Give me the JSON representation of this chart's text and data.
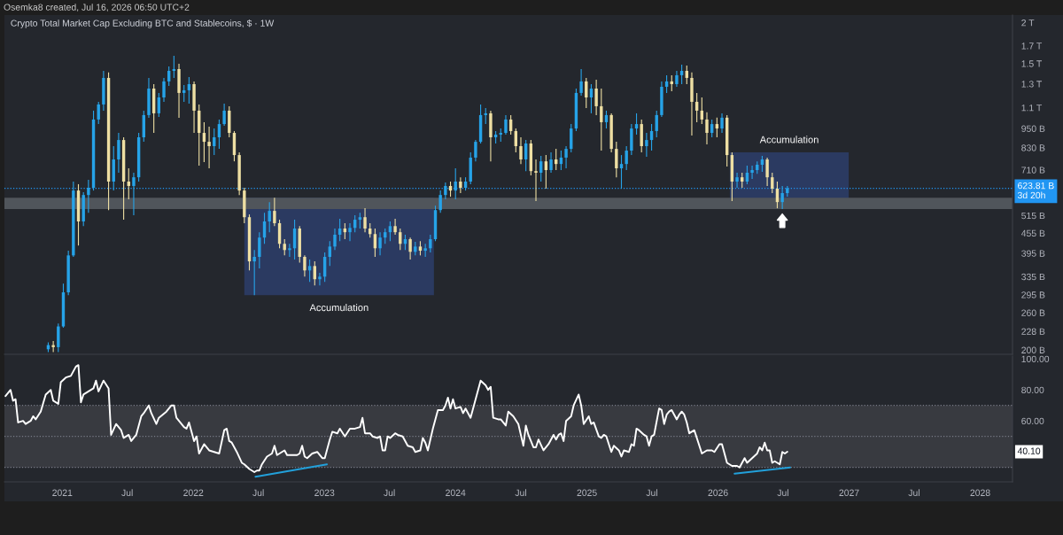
{
  "chart_data": [
    {
      "type": "candlestick",
      "title": "Crypto Total Market Cap Excluding BTC and Stablecoins, $ · 1W",
      "annotations": [
        "Osemka8 created, Jul 16, 2026 06:50 UTC+2"
      ],
      "x": [
        "2020-11-23",
        "2020-12-07",
        "2020-12-21",
        "2021-01-04",
        "2021-01-18",
        "2021-02-01",
        "2021-02-15",
        "2021-03-01",
        "2021-03-15",
        "2021-03-29",
        "2021-04-12",
        "2021-04-26",
        "2021-05-10",
        "2021-05-24",
        "2021-06-07",
        "2021-06-21",
        "2021-07-05",
        "2021-07-19",
        "2021-08-02",
        "2021-08-16",
        "2021-08-30",
        "2021-09-13",
        "2021-09-27",
        "2021-10-11",
        "2021-10-25",
        "2021-11-08",
        "2021-11-22",
        "2021-12-06",
        "2021-12-20",
        "2022-01-03",
        "2022-01-17",
        "2022-01-31",
        "2022-02-14",
        "2022-02-28",
        "2022-03-14",
        "2022-03-28",
        "2022-04-11",
        "2022-04-25",
        "2022-05-09",
        "2022-05-23",
        "2022-06-06",
        "2022-06-20",
        "2022-07-04",
        "2022-07-18",
        "2022-08-01",
        "2022-08-15",
        "2022-08-29",
        "2022-09-12",
        "2022-09-26",
        "2022-10-10",
        "2022-10-24",
        "2022-11-07",
        "2022-11-21",
        "2022-12-05",
        "2022-12-19",
        "2023-01-02",
        "2023-01-16",
        "2023-01-30",
        "2023-02-13",
        "2023-02-27",
        "2023-03-13",
        "2023-03-27",
        "2023-04-10",
        "2023-04-24",
        "2023-05-08",
        "2023-05-22",
        "2023-06-05",
        "2023-06-19",
        "2023-07-03",
        "2023-07-17",
        "2023-07-31",
        "2023-08-14",
        "2023-08-28",
        "2023-09-11",
        "2023-09-25",
        "2023-10-09",
        "2023-10-23",
        "2023-11-06",
        "2023-11-20",
        "2023-12-04",
        "2023-12-18",
        "2024-01-01",
        "2024-01-15",
        "2024-01-29",
        "2024-02-12",
        "2024-02-26",
        "2024-03-11",
        "2024-03-25",
        "2024-04-08",
        "2024-04-22",
        "2024-05-06",
        "2024-05-20",
        "2024-06-03",
        "2024-06-17",
        "2024-07-01",
        "2024-07-15",
        "2024-07-29",
        "2024-08-12",
        "2024-08-26",
        "2024-09-09",
        "2024-09-23",
        "2024-10-07",
        "2024-10-21",
        "2024-11-04",
        "2024-11-18",
        "2024-12-02",
        "2024-12-16",
        "2024-12-30",
        "2025-01-13",
        "2025-01-27",
        "2025-02-10",
        "2025-02-24",
        "2025-03-10",
        "2025-03-24",
        "2025-04-07",
        "2025-04-21",
        "2025-05-05",
        "2025-05-19",
        "2025-06-02",
        "2025-06-16",
        "2025-06-30",
        "2025-07-14",
        "2025-07-28",
        "2025-08-11",
        "2025-08-25",
        "2025-09-08",
        "2025-09-22",
        "2025-10-06",
        "2025-10-20",
        "2025-11-03",
        "2025-11-17",
        "2025-12-01",
        "2025-12-15",
        "2025-12-29",
        "2026-01-12",
        "2026-01-26",
        "2026-02-09",
        "2026-02-23",
        "2026-03-09",
        "2026-03-23",
        "2026-04-06",
        "2026-04-20",
        "2026-05-04",
        "2026-05-18",
        "2026-06-01",
        "2026-06-15",
        "2026-06-29",
        "2026-07-13"
      ],
      "ohlc": [
        [
          201000000000.0,
          211000000000.0,
          197000000000.0,
          207000000000.0
        ],
        [
          207000000000.0,
          213000000000.0,
          197000000000.0,
          204000000000.0
        ],
        [
          204000000000.0,
          241000000000.0,
          197000000000.0,
          236000000000.0
        ],
        [
          236000000000.0,
          319000000000.0,
          234000000000.0,
          300000000000.0
        ],
        [
          300000000000.0,
          402000000000.0,
          294000000000.0,
          389000000000.0
        ],
        [
          389000000000.0,
          654000000000.0,
          385000000000.0,
          614000000000.0
        ],
        [
          614000000000.0,
          642000000000.0,
          417000000000.0,
          494000000000.0
        ],
        [
          494000000000.0,
          607000000000.0,
          478000000000.0,
          595000000000.0
        ],
        [
          595000000000.0,
          662000000000.0,
          525000000000.0,
          626000000000.0
        ],
        [
          626000000000.0,
          1077000000000.0,
          614000000000.0,
          1012000000000.0
        ],
        [
          1012000000000.0,
          1146000000000.0,
          980000000000.0,
          1125000000000.0
        ],
        [
          1125000000000.0,
          1425000000000.0,
          1077000000000.0,
          1356000000000.0
        ],
        [
          1356000000000.0,
          1410000000000.0,
          535000000000.0,
          654000000000.0
        ],
        [
          654000000000.0,
          839000000000.0,
          614000000000.0,
          764000000000.0
        ],
        [
          764000000000.0,
          921000000000.0,
          696000000000.0,
          876000000000.0
        ],
        [
          876000000000.0,
          893000000000.0,
          500000000000.0,
          654000000000.0
        ],
        [
          654000000000.0,
          718000000000.0,
          577000000000.0,
          634000000000.0
        ],
        [
          634000000000.0,
          696000000000.0,
          516000000000.0,
          674000000000.0
        ],
        [
          674000000000.0,
          921000000000.0,
          654000000000.0,
          893000000000.0
        ],
        [
          893000000000.0,
          1077000000000.0,
          865000000000.0,
          1044000000000.0
        ],
        [
          1044000000000.0,
          1356000000000.0,
          1024000000000.0,
          1258000000000.0
        ],
        [
          1258000000000.0,
          1298000000000.0,
          921000000000.0,
          1057000000000.0
        ],
        [
          1057000000000.0,
          1220000000000.0,
          1031000000000.0,
          1182000000000.0
        ],
        [
          1182000000000.0,
          1356000000000.0,
          1146000000000.0,
          1323000000000.0
        ],
        [
          1323000000000.0,
          1471000000000.0,
          1282000000000.0,
          1425000000000.0
        ],
        [
          1425000000000.0,
          1585000000000.0,
          1356000000000.0,
          1443000000000.0
        ],
        [
          1443000000000.0,
          1498000000000.0,
          1024000000000.0,
          1220000000000.0
        ],
        [
          1220000000000.0,
          1290000000000.0,
          1146000000000.0,
          1243000000000.0
        ],
        [
          1243000000000.0,
          1365000000000.0,
          1132000000000.0,
          1298000000000.0
        ],
        [
          1298000000000.0,
          1323000000000.0,
          921000000000.0,
          1077000000000.0
        ],
        [
          1077000000000.0,
          1125000000000.0,
          731000000000.0,
          921000000000.0
        ],
        [
          921000000000.0,
          993000000000.0,
          750000000000.0,
          865000000000.0
        ],
        [
          865000000000.0,
          962000000000.0,
          718000000000.0,
          839000000000.0
        ],
        [
          839000000000.0,
          950000000000.0,
          788000000000.0,
          893000000000.0
        ],
        [
          893000000000.0,
          1012000000000.0,
          823000000000.0,
          980000000000.0
        ],
        [
          980000000000.0,
          1132000000000.0,
          968000000000.0,
          1077000000000.0
        ],
        [
          1077000000000.0,
          1111000000000.0,
          893000000000.0,
          921000000000.0
        ],
        [
          921000000000.0,
          933000000000.0,
          754000000000.0,
          788000000000.0
        ],
        [
          788000000000.0,
          803000000000.0,
          595000000000.0,
          614000000000.0
        ],
        [
          614000000000.0,
          626000000000.0,
          488000000000.0,
          509000000000.0
        ],
        [
          509000000000.0,
          519000000000.0,
          350000000000.0,
          373000000000.0
        ],
        [
          373000000000.0,
          404000000000.0,
          294000000000.0,
          385000000000.0
        ],
        [
          385000000000.0,
          458000000000.0,
          355000000000.0,
          441000000000.0
        ],
        [
          441000000000.0,
          525000000000.0,
          422000000000.0,
          494000000000.0
        ],
        [
          494000000000.0,
          566000000000.0,
          458000000000.0,
          532000000000.0
        ],
        [
          532000000000.0,
          584000000000.0,
          478000000000.0,
          488000000000.0
        ],
        [
          488000000000.0,
          500000000000.0,
          409000000000.0,
          422000000000.0
        ],
        [
          422000000000.0,
          436000000000.0,
          389000000000.0,
          404000000000.0
        ],
        [
          404000000000.0,
          422000000000.0,
          385000000000.0,
          409000000000.0
        ],
        [
          409000000000.0,
          500000000000.0,
          378000000000.0,
          470000000000.0
        ],
        [
          470000000000.0,
          478000000000.0,
          370000000000.0,
          385000000000.0
        ],
        [
          385000000000.0,
          389000000000.0,
          335000000000.0,
          350000000000.0
        ],
        [
          350000000000.0,
          378000000000.0,
          323000000000.0,
          361000000000.0
        ],
        [
          361000000000.0,
          373000000000.0,
          315000000000.0,
          329000000000.0
        ],
        [
          329000000000.0,
          344000000000.0,
          315000000000.0,
          335000000000.0
        ],
        [
          335000000000.0,
          397000000000.0,
          323000000000.0,
          385000000000.0
        ],
        [
          385000000000.0,
          430000000000.0,
          361000000000.0,
          414000000000.0
        ],
        [
          414000000000.0,
          470000000000.0,
          404000000000.0,
          450000000000.0
        ],
        [
          450000000000.0,
          503000000000.0,
          430000000000.0,
          470000000000.0
        ],
        [
          470000000000.0,
          488000000000.0,
          436000000000.0,
          458000000000.0
        ],
        [
          458000000000.0,
          488000000000.0,
          430000000000.0,
          472000000000.0
        ],
        [
          472000000000.0,
          516000000000.0,
          458000000000.0,
          500000000000.0
        ],
        [
          500000000000.0,
          525000000000.0,
          470000000000.0,
          509000000000.0
        ],
        [
          509000000000.0,
          542000000000.0,
          458000000000.0,
          470000000000.0
        ],
        [
          470000000000.0,
          488000000000.0,
          441000000000.0,
          452000000000.0
        ],
        [
          452000000000.0,
          470000000000.0,
          385000000000.0,
          409000000000.0
        ],
        [
          409000000000.0,
          458000000000.0,
          389000000000.0,
          441000000000.0
        ],
        [
          441000000000.0,
          470000000000.0,
          422000000000.0,
          458000000000.0
        ],
        [
          458000000000.0,
          494000000000.0,
          430000000000.0,
          478000000000.0
        ],
        [
          478000000000.0,
          503000000000.0,
          450000000000.0,
          458000000000.0
        ],
        [
          458000000000.0,
          470000000000.0,
          404000000000.0,
          422000000000.0
        ],
        [
          422000000000.0,
          450000000000.0,
          404000000000.0,
          436000000000.0
        ],
        [
          436000000000.0,
          441000000000.0,
          378000000000.0,
          399000000000.0
        ],
        [
          399000000000.0,
          428000000000.0,
          389000000000.0,
          414000000000.0
        ],
        [
          414000000000.0,
          430000000000.0,
          389000000000.0,
          402000000000.0
        ],
        [
          402000000000.0,
          422000000000.0,
          385000000000.0,
          409000000000.0
        ],
        [
          409000000000.0,
          450000000000.0,
          397000000000.0,
          436000000000.0
        ],
        [
          436000000000.0,
          552000000000.0,
          430000000000.0,
          535000000000.0
        ],
        [
          535000000000.0,
          614000000000.0,
          525000000000.0,
          595000000000.0
        ],
        [
          595000000000.0,
          650000000000.0,
          577000000000.0,
          634000000000.0
        ],
        [
          634000000000.0,
          654000000000.0,
          588000000000.0,
          614000000000.0
        ],
        [
          614000000000.0,
          718000000000.0,
          577000000000.0,
          654000000000.0
        ],
        [
          654000000000.0,
          674000000000.0,
          603000000000.0,
          626000000000.0
        ],
        [
          626000000000.0,
          674000000000.0,
          614000000000.0,
          654000000000.0
        ],
        [
          654000000000.0,
          803000000000.0,
          642000000000.0,
          774000000000.0
        ],
        [
          774000000000.0,
          876000000000.0,
          754000000000.0,
          865000000000.0
        ],
        [
          865000000000.0,
          1125000000000.0,
          855000000000.0,
          1044000000000.0
        ],
        [
          1044000000000.0,
          1097000000000.0,
          980000000000.0,
          1057000000000.0
        ],
        [
          1057000000000.0,
          1077000000000.0,
          754000000000.0,
          893000000000.0
        ],
        [
          893000000000.0,
          933000000000.0,
          855000000000.0,
          910000000000.0
        ],
        [
          910000000000.0,
          950000000000.0,
          865000000000.0,
          921000000000.0
        ],
        [
          921000000000.0,
          1044000000000.0,
          910000000000.0,
          1012000000000.0
        ],
        [
          1012000000000.0,
          1044000000000.0,
          910000000000.0,
          933000000000.0
        ],
        [
          933000000000.0,
          950000000000.0,
          803000000000.0,
          839000000000.0
        ],
        [
          839000000000.0,
          893000000000.0,
          740000000000.0,
          764000000000.0
        ],
        [
          764000000000.0,
          876000000000.0,
          704000000000.0,
          855000000000.0
        ],
        [
          855000000000.0,
          876000000000.0,
          683000000000.0,
          704000000000.0
        ],
        [
          704000000000.0,
          764000000000.0,
          570000000000.0,
          696000000000.0
        ],
        [
          696000000000.0,
          783000000000.0,
          654000000000.0,
          754000000000.0
        ],
        [
          754000000000.0,
          788000000000.0,
          622000000000.0,
          709000000000.0
        ],
        [
          709000000000.0,
          803000000000.0,
          696000000000.0,
          764000000000.0
        ],
        [
          764000000000.0,
          823000000000.0,
          709000000000.0,
          740000000000.0
        ],
        [
          740000000000.0,
          813000000000.0,
          709000000000.0,
          774000000000.0
        ],
        [
          774000000000.0,
          839000000000.0,
          718000000000.0,
          823000000000.0
        ],
        [
          823000000000.0,
          980000000000.0,
          803000000000.0,
          950000000000.0
        ],
        [
          950000000000.0,
          1258000000000.0,
          933000000000.0,
          1220000000000.0
        ],
        [
          1220000000000.0,
          1443000000000.0,
          1197000000000.0,
          1323000000000.0
        ],
        [
          1323000000000.0,
          1356000000000.0,
          1097000000000.0,
          1182000000000.0
        ],
        [
          1182000000000.0,
          1298000000000.0,
          1057000000000.0,
          1258000000000.0
        ],
        [
          1258000000000.0,
          1339000000000.0,
          1044000000000.0,
          1111000000000.0
        ],
        [
          1111000000000.0,
          1258000000000.0,
          813000000000.0,
          993000000000.0
        ],
        [
          993000000000.0,
          1077000000000.0,
          950000000000.0,
          1044000000000.0
        ],
        [
          1044000000000.0,
          1057000000000.0,
          803000000000.0,
          823000000000.0
        ],
        [
          823000000000.0,
          865000000000.0,
          674000000000.0,
          718000000000.0
        ],
        [
          718000000000.0,
          788000000000.0,
          622000000000.0,
          740000000000.0
        ],
        [
          740000000000.0,
          839000000000.0,
          709000000000.0,
          813000000000.0
        ],
        [
          813000000000.0,
          980000000000.0,
          788000000000.0,
          950000000000.0
        ],
        [
          950000000000.0,
          1057000000000.0,
          910000000000.0,
          980000000000.0
        ],
        [
          980000000000.0,
          1012000000000.0,
          803000000000.0,
          839000000000.0
        ],
        [
          839000000000.0,
          921000000000.0,
          778000000000.0,
          876000000000.0
        ],
        [
          876000000000.0,
          980000000000.0,
          813000000000.0,
          933000000000.0
        ],
        [
          933000000000.0,
          1077000000000.0,
          893000000000.0,
          1044000000000.0
        ],
        [
          1044000000000.0,
          1323000000000.0,
          1031000000000.0,
          1274000000000.0
        ],
        [
          1274000000000.0,
          1382000000000.0,
          1220000000000.0,
          1323000000000.0
        ],
        [
          1323000000000.0,
          1382000000000.0,
          1235000000000.0,
          1298000000000.0
        ],
        [
          1298000000000.0,
          1425000000000.0,
          1274000000000.0,
          1382000000000.0
        ],
        [
          1382000000000.0,
          1489000000000.0,
          1298000000000.0,
          1425000000000.0
        ],
        [
          1425000000000.0,
          1480000000000.0,
          1298000000000.0,
          1356000000000.0
        ],
        [
          1356000000000.0,
          1410000000000.0,
          904000000000.0,
          1146000000000.0
        ],
        [
          1146000000000.0,
          1220000000000.0,
          993000000000.0,
          1077000000000.0
        ],
        [
          1077000000000.0,
          1182000000000.0,
          980000000000.0,
          1012000000000.0
        ],
        [
          1012000000000.0,
          1064000000000.0,
          849000000000.0,
          921000000000.0
        ],
        [
          921000000000.0,
          1012000000000.0,
          893000000000.0,
          980000000000.0
        ],
        [
          980000000000.0,
          1025000000000.0,
          893000000000.0,
          950000000000.0
        ],
        [
          950000000000.0,
          1057000000000.0,
          921000000000.0,
          1025000000000.0
        ],
        [
          1025000000000.0,
          1044000000000.0,
          727000000000.0,
          788000000000.0
        ],
        [
          788000000000.0,
          803000000000.0,
          570000000000.0,
          654000000000.0
        ],
        [
          654000000000.0,
          696000000000.0,
          626000000000.0,
          674000000000.0
        ],
        [
          674000000000.0,
          696000000000.0,
          626000000000.0,
          654000000000.0
        ],
        [
          654000000000.0,
          731000000000.0,
          642000000000.0,
          696000000000.0
        ],
        [
          696000000000.0,
          731000000000.0,
          666000000000.0,
          709000000000.0
        ],
        [
          709000000000.0,
          754000000000.0,
          691000000000.0,
          736000000000.0
        ],
        [
          736000000000.0,
          783000000000.0,
          700000000000.0,
          764000000000.0
        ],
        [
          764000000000.0,
          774000000000.0,
          634000000000.0,
          674000000000.0
        ],
        [
          674000000000.0,
          696000000000.0,
          603000000000.0,
          622000000000.0
        ],
        [
          622000000000.0,
          654000000000.0,
          542000000000.0,
          566000000000.0
        ],
        [
          566000000000.0,
          634000000000.0,
          539000000000.0,
          603000000000.0
        ],
        [
          603000000000.0,
          634000000000.0,
          588000000000.0,
          623810000000.0
        ]
      ],
      "colors": [
        "#26a3e8",
        "#eedfa3",
        "#26a3e8",
        "#26a3e8",
        "#26a3e8",
        "#26a3e8",
        "#eedfa3",
        "#26a3e8",
        "#26a3e8",
        "#26a3e8",
        "#26a3e8",
        "#26a3e8",
        "#eedfa3",
        "#26a3e8",
        "#26a3e8",
        "#eedfa3",
        "#eedfa3",
        "#26a3e8",
        "#26a3e8",
        "#26a3e8",
        "#26a3e8",
        "#eedfa3",
        "#26a3e8",
        "#26a3e8",
        "#26a3e8",
        "#26a3e8",
        "#eedfa3",
        "#26a3e8",
        "#26a3e8",
        "#eedfa3",
        "#eedfa3",
        "#eedfa3",
        "#eedfa3",
        "#26a3e8",
        "#26a3e8",
        "#26a3e8",
        "#eedfa3",
        "#eedfa3",
        "#eedfa3",
        "#eedfa3",
        "#eedfa3",
        "#26a3e8",
        "#26a3e8",
        "#26a3e8",
        "#26a3e8",
        "#eedfa3",
        "#eedfa3",
        "#eedfa3",
        "#26a3e8",
        "#26a3e8",
        "#eedfa3",
        "#eedfa3",
        "#26a3e8",
        "#eedfa3",
        "#26a3e8",
        "#26a3e8",
        "#26a3e8",
        "#26a3e8",
        "#26a3e8",
        "#eedfa3",
        "#26a3e8",
        "#26a3e8",
        "#26a3e8",
        "#eedfa3",
        "#eedfa3",
        "#eedfa3",
        "#26a3e8",
        "#26a3e8",
        "#26a3e8",
        "#eedfa3",
        "#eedfa3",
        "#26a3e8",
        "#eedfa3",
        "#26a3e8",
        "#eedfa3",
        "#26a3e8",
        "#26a3e8",
        "#26a3e8",
        "#26a3e8",
        "#26a3e8",
        "#eedfa3",
        "#26a3e8",
        "#eedfa3",
        "#26a3e8",
        "#26a3e8",
        "#26a3e8",
        "#26a3e8",
        "#26a3e8",
        "#eedfa3",
        "#26a3e8",
        "#26a3e8",
        "#26a3e8",
        "#eedfa3",
        "#eedfa3",
        "#eedfa3",
        "#26a3e8",
        "#eedfa3",
        "#eedfa3",
        "#26a3e8",
        "#eedfa3",
        "#26a3e8",
        "#eedfa3",
        "#26a3e8",
        "#26a3e8",
        "#26a3e8",
        "#26a3e8",
        "#26a3e8",
        "#eedfa3",
        "#26a3e8",
        "#eedfa3",
        "#eedfa3",
        "#26a3e8",
        "#eedfa3",
        "#eedfa3",
        "#26a3e8",
        "#26a3e8",
        "#26a3e8",
        "#26a3e8",
        "#eedfa3",
        "#26a3e8",
        "#26a3e8",
        "#26a3e8",
        "#26a3e8",
        "#26a3e8",
        "#eedfa3",
        "#26a3e8",
        "#26a3e8",
        "#eedfa3",
        "#eedfa3",
        "#eedfa3",
        "#eedfa3",
        "#eedfa3",
        "#26a3e8",
        "#eedfa3",
        "#26a3e8",
        "#eedfa3",
        "#eedfa3",
        "#26a3e8",
        "#eedfa3",
        "#26a3e8",
        "#26a3e8",
        "#26a3e8",
        "#26a3e8",
        "#eedfa3",
        "#eedfa3",
        "#eedfa3",
        "#26a3e8",
        "#26a3e8"
      ],
      "log": true,
      "xlim": [
        "2020-07-24",
        "2028-03-31"
      ],
      "ylim": [
        194000000000.0,
        2110000000000.0
      ],
      "yticks": [
        {
          "value": 2000000000000.0,
          "label": "2 T"
        },
        {
          "value": 1700000000000.0,
          "label": "1.7 T"
        },
        {
          "value": 1500000000000.0,
          "label": "1.5 T"
        },
        {
          "value": 1300000000000.0,
          "label": "1.3 T"
        },
        {
          "value": 1100000000000.0,
          "label": "1.1 T"
        },
        {
          "value": 950000000000.0,
          "label": "950 B"
        },
        {
          "value": 830000000000.0,
          "label": "830 B"
        },
        {
          "value": 710000000000.0,
          "label": "710 B"
        },
        {
          "value": 515000000000.0,
          "label": "515 B"
        },
        {
          "value": 455000000000.0,
          "label": "455 B"
        },
        {
          "value": 395000000000.0,
          "label": "395 B"
        },
        {
          "value": 335000000000.0,
          "label": "335 B"
        },
        {
          "value": 295000000000.0,
          "label": "295 B"
        },
        {
          "value": 260000000000.0,
          "label": "260 B"
        },
        {
          "value": 228000000000.0,
          "label": "228 B"
        },
        {
          "value": 200000000000.0,
          "label": "200 B"
        }
      ],
      "tick_labels": "y",
      "bands": [
        {
          "axis": "y",
          "from": 539000000000.0,
          "to": 584000000000.0,
          "color": "#50555b"
        },
        {
          "axis": "x",
          "from": "2022-05-23",
          "to": "2023-11-02",
          "label": "Accumulation",
          "color": "#2b3a61"
        },
        {
          "axis": "x",
          "from": "2026-02-03",
          "to": "2026-12-31",
          "label": "Accumulation",
          "color": "#2b3a61"
        }
      ],
      "ref_lines": [
        {
          "axis": "y",
          "value": 623810000000.0,
          "label": "623.81 B\n3d 20h",
          "color": "#2196f3",
          "line_style": "dotted"
        }
      ]
    },
    {
      "type": "line",
      "xlim": [
        "2020-07-24",
        "2028-03-31"
      ],
      "xticks": [
        {
          "value": "2021-01-01",
          "label": "2021"
        },
        {
          "value": "2021-07-01",
          "label": "Jul"
        },
        {
          "value": "2022-01-01",
          "label": "2022"
        },
        {
          "value": "2022-07-01",
          "label": "Jul"
        },
        {
          "value": "2023-01-01",
          "label": "2023"
        },
        {
          "value": "2023-07-01",
          "label": "Jul"
        },
        {
          "value": "2024-01-01",
          "label": "2024"
        },
        {
          "value": "2024-07-01",
          "label": "Jul"
        },
        {
          "value": "2025-01-01",
          "label": "2025"
        },
        {
          "value": "2025-07-01",
          "label": "Jul"
        },
        {
          "value": "2026-01-01",
          "label": "2026"
        },
        {
          "value": "2026-07-01",
          "label": "Jul"
        },
        {
          "value": "2027-01-01",
          "label": "2027"
        },
        {
          "value": "2027-07-01",
          "label": "Jul"
        },
        {
          "value": "2028-01-01",
          "label": "2028"
        }
      ],
      "ylim": [
        20.7,
        101.8
      ],
      "yticks": [
        {
          "value": 100,
          "label": "100.00"
        },
        {
          "value": 80,
          "label": "80.00"
        },
        {
          "value": 60,
          "label": "60.00"
        }
      ],
      "bands": [
        {
          "axis": "y",
          "from": 30,
          "to": 70,
          "color": "#383a40"
        }
      ],
      "ref_lines": [
        {
          "axis": "y",
          "value": 70,
          "line_style": "dotted",
          "color": "#787b86"
        },
        {
          "axis": "y",
          "value": 50,
          "line_style": "dotted",
          "color": "#787b86"
        },
        {
          "axis": "y",
          "value": 30,
          "line_style": "dotted",
          "color": "#787b86"
        }
      ],
      "annotations": [
        {
          "text": "40.10",
          "y": 40.1
        }
      ],
      "series": [
        {
          "color": "#ffffff",
          "x": [
            "2020-07-27",
            "2020-08-10",
            "2020-08-17",
            "2020-08-24",
            "2020-08-31",
            "2020-09-14",
            "2020-09-21",
            "2020-10-05",
            "2020-10-12",
            "2020-10-19",
            "2020-11-02",
            "2020-11-16",
            "2020-11-30",
            "2020-12-07",
            "2020-12-21",
            "2020-12-28",
            "2021-01-11",
            "2021-01-25",
            "2021-02-08",
            "2021-02-15",
            "2021-02-22",
            "2021-03-01",
            "2021-03-15",
            "2021-03-29",
            "2021-04-05",
            "2021-04-12",
            "2021-04-26",
            "2021-05-10",
            "2021-05-17",
            "2021-05-31",
            "2021-06-14",
            "2021-06-21",
            "2021-07-05",
            "2021-07-12",
            "2021-07-26",
            "2021-08-09",
            "2021-08-16",
            "2021-08-30",
            "2021-09-06",
            "2021-09-20",
            "2021-09-27",
            "2021-10-18",
            "2021-11-01",
            "2021-11-08",
            "2021-11-15",
            "2021-12-06",
            "2021-12-13",
            "2021-12-20",
            "2022-01-03",
            "2022-01-10",
            "2022-01-17",
            "2022-01-31",
            "2022-02-14",
            "2022-02-28",
            "2022-03-14",
            "2022-03-28",
            "2022-04-04",
            "2022-04-11",
            "2022-04-18",
            "2022-05-02",
            "2022-05-16",
            "2022-05-23",
            "2022-06-06",
            "2022-06-20",
            "2022-06-27",
            "2022-07-04",
            "2022-07-11",
            "2022-07-25",
            "2022-08-08",
            "2022-08-15",
            "2022-08-22",
            "2022-08-29",
            "2022-09-12",
            "2022-09-19",
            "2022-10-03",
            "2022-10-17",
            "2022-10-24",
            "2022-10-31",
            "2022-11-07",
            "2022-11-14",
            "2022-11-28",
            "2022-12-12",
            "2022-12-26",
            "2023-01-02",
            "2023-01-16",
            "2023-01-23",
            "2023-02-06",
            "2023-02-13",
            "2023-02-27",
            "2023-03-13",
            "2023-03-27",
            "2023-04-10",
            "2023-04-17",
            "2023-04-24",
            "2023-05-08",
            "2023-05-15",
            "2023-05-29",
            "2023-06-05",
            "2023-06-12",
            "2023-06-19",
            "2023-06-26",
            "2023-07-03",
            "2023-07-17",
            "2023-07-24",
            "2023-08-07",
            "2023-08-14",
            "2023-08-21",
            "2023-09-04",
            "2023-09-11",
            "2023-09-25",
            "2023-10-02",
            "2023-10-09",
            "2023-10-16",
            "2023-10-30",
            "2023-11-13",
            "2023-11-27",
            "2023-12-04",
            "2023-12-11",
            "2023-12-18",
            "2023-12-25",
            "2024-01-01",
            "2024-01-15",
            "2024-01-22",
            "2024-01-29",
            "2024-02-12",
            "2024-02-26",
            "2024-03-04",
            "2024-03-11",
            "2024-03-25",
            "2024-04-01",
            "2024-04-08",
            "2024-04-15",
            "2024-04-29",
            "2024-05-06",
            "2024-05-20",
            "2024-05-27",
            "2024-06-10",
            "2024-06-24",
            "2024-07-01",
            "2024-07-08",
            "2024-07-15",
            "2024-07-22",
            "2024-08-05",
            "2024-08-12",
            "2024-08-19",
            "2024-09-02",
            "2024-09-16",
            "2024-09-30",
            "2024-10-07",
            "2024-10-14",
            "2024-10-21",
            "2024-10-28",
            "2024-11-04",
            "2024-11-18",
            "2024-11-25",
            "2024-12-09",
            "2024-12-16",
            "2024-12-23",
            "2025-01-06",
            "2025-01-13",
            "2025-01-20",
            "2025-02-03",
            "2025-02-10",
            "2025-02-17",
            "2025-02-24",
            "2025-03-10",
            "2025-03-17",
            "2025-03-31",
            "2025-04-07",
            "2025-04-14",
            "2025-04-28",
            "2025-05-05",
            "2025-05-12",
            "2025-05-19",
            "2025-05-26",
            "2025-06-09",
            "2025-06-16",
            "2025-06-23",
            "2025-06-30",
            "2025-07-07",
            "2025-07-21",
            "2025-07-28",
            "2025-08-04",
            "2025-08-11",
            "2025-08-18",
            "2025-08-25",
            "2025-09-08",
            "2025-09-15",
            "2025-09-22",
            "2025-09-29",
            "2025-10-06",
            "2025-10-13",
            "2025-10-27",
            "2025-11-03",
            "2025-11-17",
            "2025-12-01",
            "2025-12-15",
            "2025-12-22",
            "2026-01-05",
            "2026-01-12",
            "2026-01-26",
            "2026-02-09",
            "2026-02-23",
            "2026-03-02",
            "2026-03-16",
            "2026-03-23",
            "2026-04-06",
            "2026-04-20",
            "2026-04-27",
            "2026-05-04",
            "2026-05-11",
            "2026-05-18",
            "2026-05-25",
            "2026-06-01",
            "2026-06-08",
            "2026-06-22",
            "2026-06-29",
            "2026-07-06",
            "2026-07-13"
          ],
          "values": [
            76,
            80,
            73,
            74,
            59,
            60,
            58,
            60,
            63,
            61,
            66,
            77,
            80,
            73,
            71,
            85,
            88,
            89,
            95,
            96,
            72,
            77,
            79,
            81,
            86,
            79,
            86,
            81,
            51,
            58,
            54,
            49,
            51,
            47,
            51,
            63,
            65,
            70,
            65,
            58,
            62,
            66,
            70,
            70,
            62,
            56,
            55,
            59,
            47,
            50,
            39,
            45,
            41,
            40,
            39,
            54,
            55,
            47,
            46,
            40,
            33,
            32,
            29,
            27,
            28,
            28,
            32,
            37,
            39,
            44,
            38,
            39,
            41,
            38,
            38,
            38,
            39,
            44,
            37,
            36,
            39,
            40,
            36,
            36,
            48,
            53,
            52,
            55,
            50,
            55,
            55,
            56,
            62,
            52,
            52,
            50,
            49,
            50,
            41,
            41,
            50,
            49,
            52,
            51,
            50,
            47,
            44,
            43,
            40,
            41,
            49,
            46,
            41,
            55,
            67,
            67,
            70,
            75,
            68,
            74,
            68,
            69,
            65,
            68,
            62,
            74,
            80,
            86,
            83,
            80,
            82,
            62,
            61,
            61,
            57,
            66,
            63,
            58,
            51,
            44,
            57,
            51,
            43,
            43,
            48,
            41,
            45,
            51,
            48,
            51,
            52,
            47,
            60,
            63,
            70,
            77,
            70,
            58,
            63,
            58,
            59,
            50,
            49,
            51,
            50,
            40,
            44,
            41,
            37,
            41,
            40,
            45,
            44,
            55,
            54,
            51,
            50,
            44,
            50,
            51,
            68,
            67,
            58,
            64,
            66,
            67,
            61,
            64,
            66,
            64,
            59,
            52,
            54,
            49,
            39,
            41,
            41,
            40,
            45,
            45,
            33,
            31,
            31,
            30,
            36,
            33,
            36,
            39,
            43,
            41,
            46,
            41,
            41,
            33,
            34,
            32,
            40,
            39,
            40.1
          ]
        },
        {
          "color": "#22a0da",
          "x": [
            "2022-06-23",
            "2023-01-08"
          ],
          "values": [
            24,
            32
          ]
        },
        {
          "color": "#22a0da",
          "x": [
            "2026-02-16",
            "2026-07-21"
          ],
          "values": [
            26,
            30
          ]
        }
      ]
    }
  ]
}
